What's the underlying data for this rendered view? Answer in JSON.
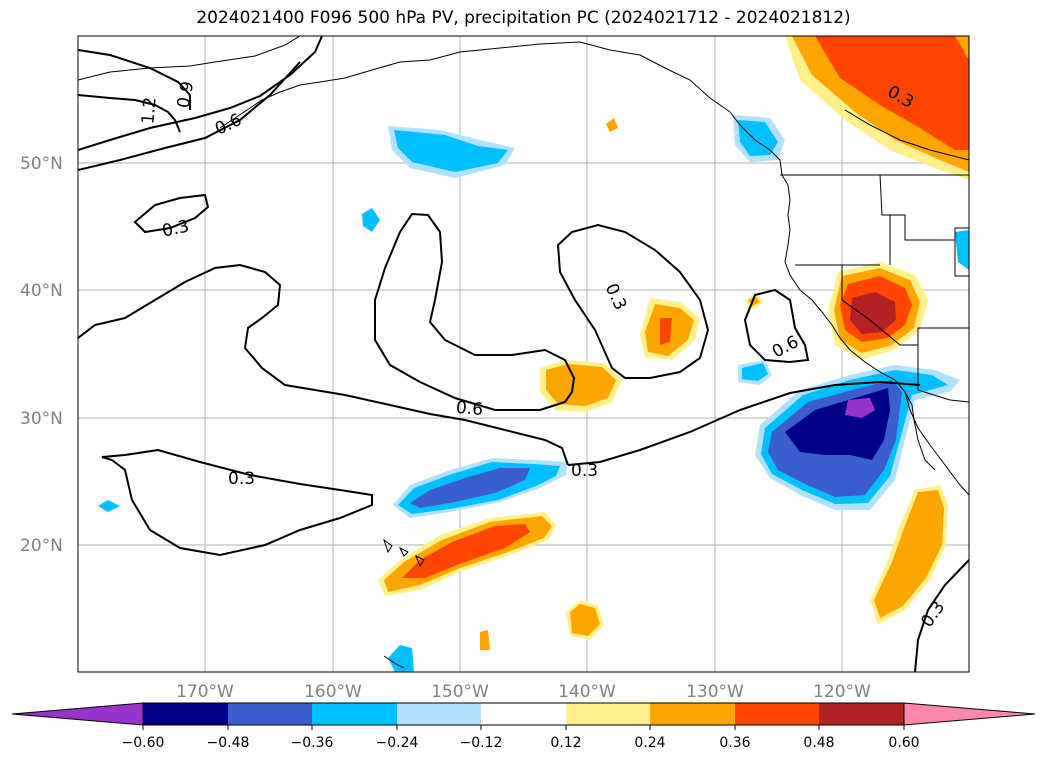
{
  "title": "2024021400 F096 500 hPa PV, precipitation PC (2024021712 - 2024021812)",
  "lat_labels": [
    "50°N",
    "40°N",
    "30°N",
    "20°N"
  ],
  "lon_labels": [
    "170°W",
    "160°W",
    "150°W",
    "140°W",
    "130°W",
    "120°W"
  ],
  "contour_labels": [
    "1.2",
    "0.9",
    "0.6",
    "0.3",
    "0.3",
    "0.6",
    "0.3",
    "0.3",
    "0.6",
    "0.3",
    "0.3"
  ],
  "colorbar": {
    "ticks": [
      "−0.60",
      "−0.48",
      "−0.36",
      "−0.24",
      "−0.12",
      "0.12",
      "0.24",
      "0.36",
      "0.48",
      "0.60"
    ],
    "colors": [
      "#9933cc",
      "#00008b",
      "#3a5fcd",
      "#00bfff",
      "#b0e2ff",
      "#ffffff",
      "#fff08a",
      "#ffa500",
      "#ff4500",
      "#b22222",
      "#ff88aa"
    ]
  },
  "colors": {
    "pos_light": "#fff08a",
    "pos_orange": "#ffa500",
    "pos_red": "#ff4500",
    "pos_dark": "#b22222",
    "neg_light": "#b0e2ff",
    "neg_sky": "#00bfff",
    "neg_blue": "#3a5fcd",
    "neg_navy": "#00008b",
    "neg_purple": "#9933cc"
  }
}
